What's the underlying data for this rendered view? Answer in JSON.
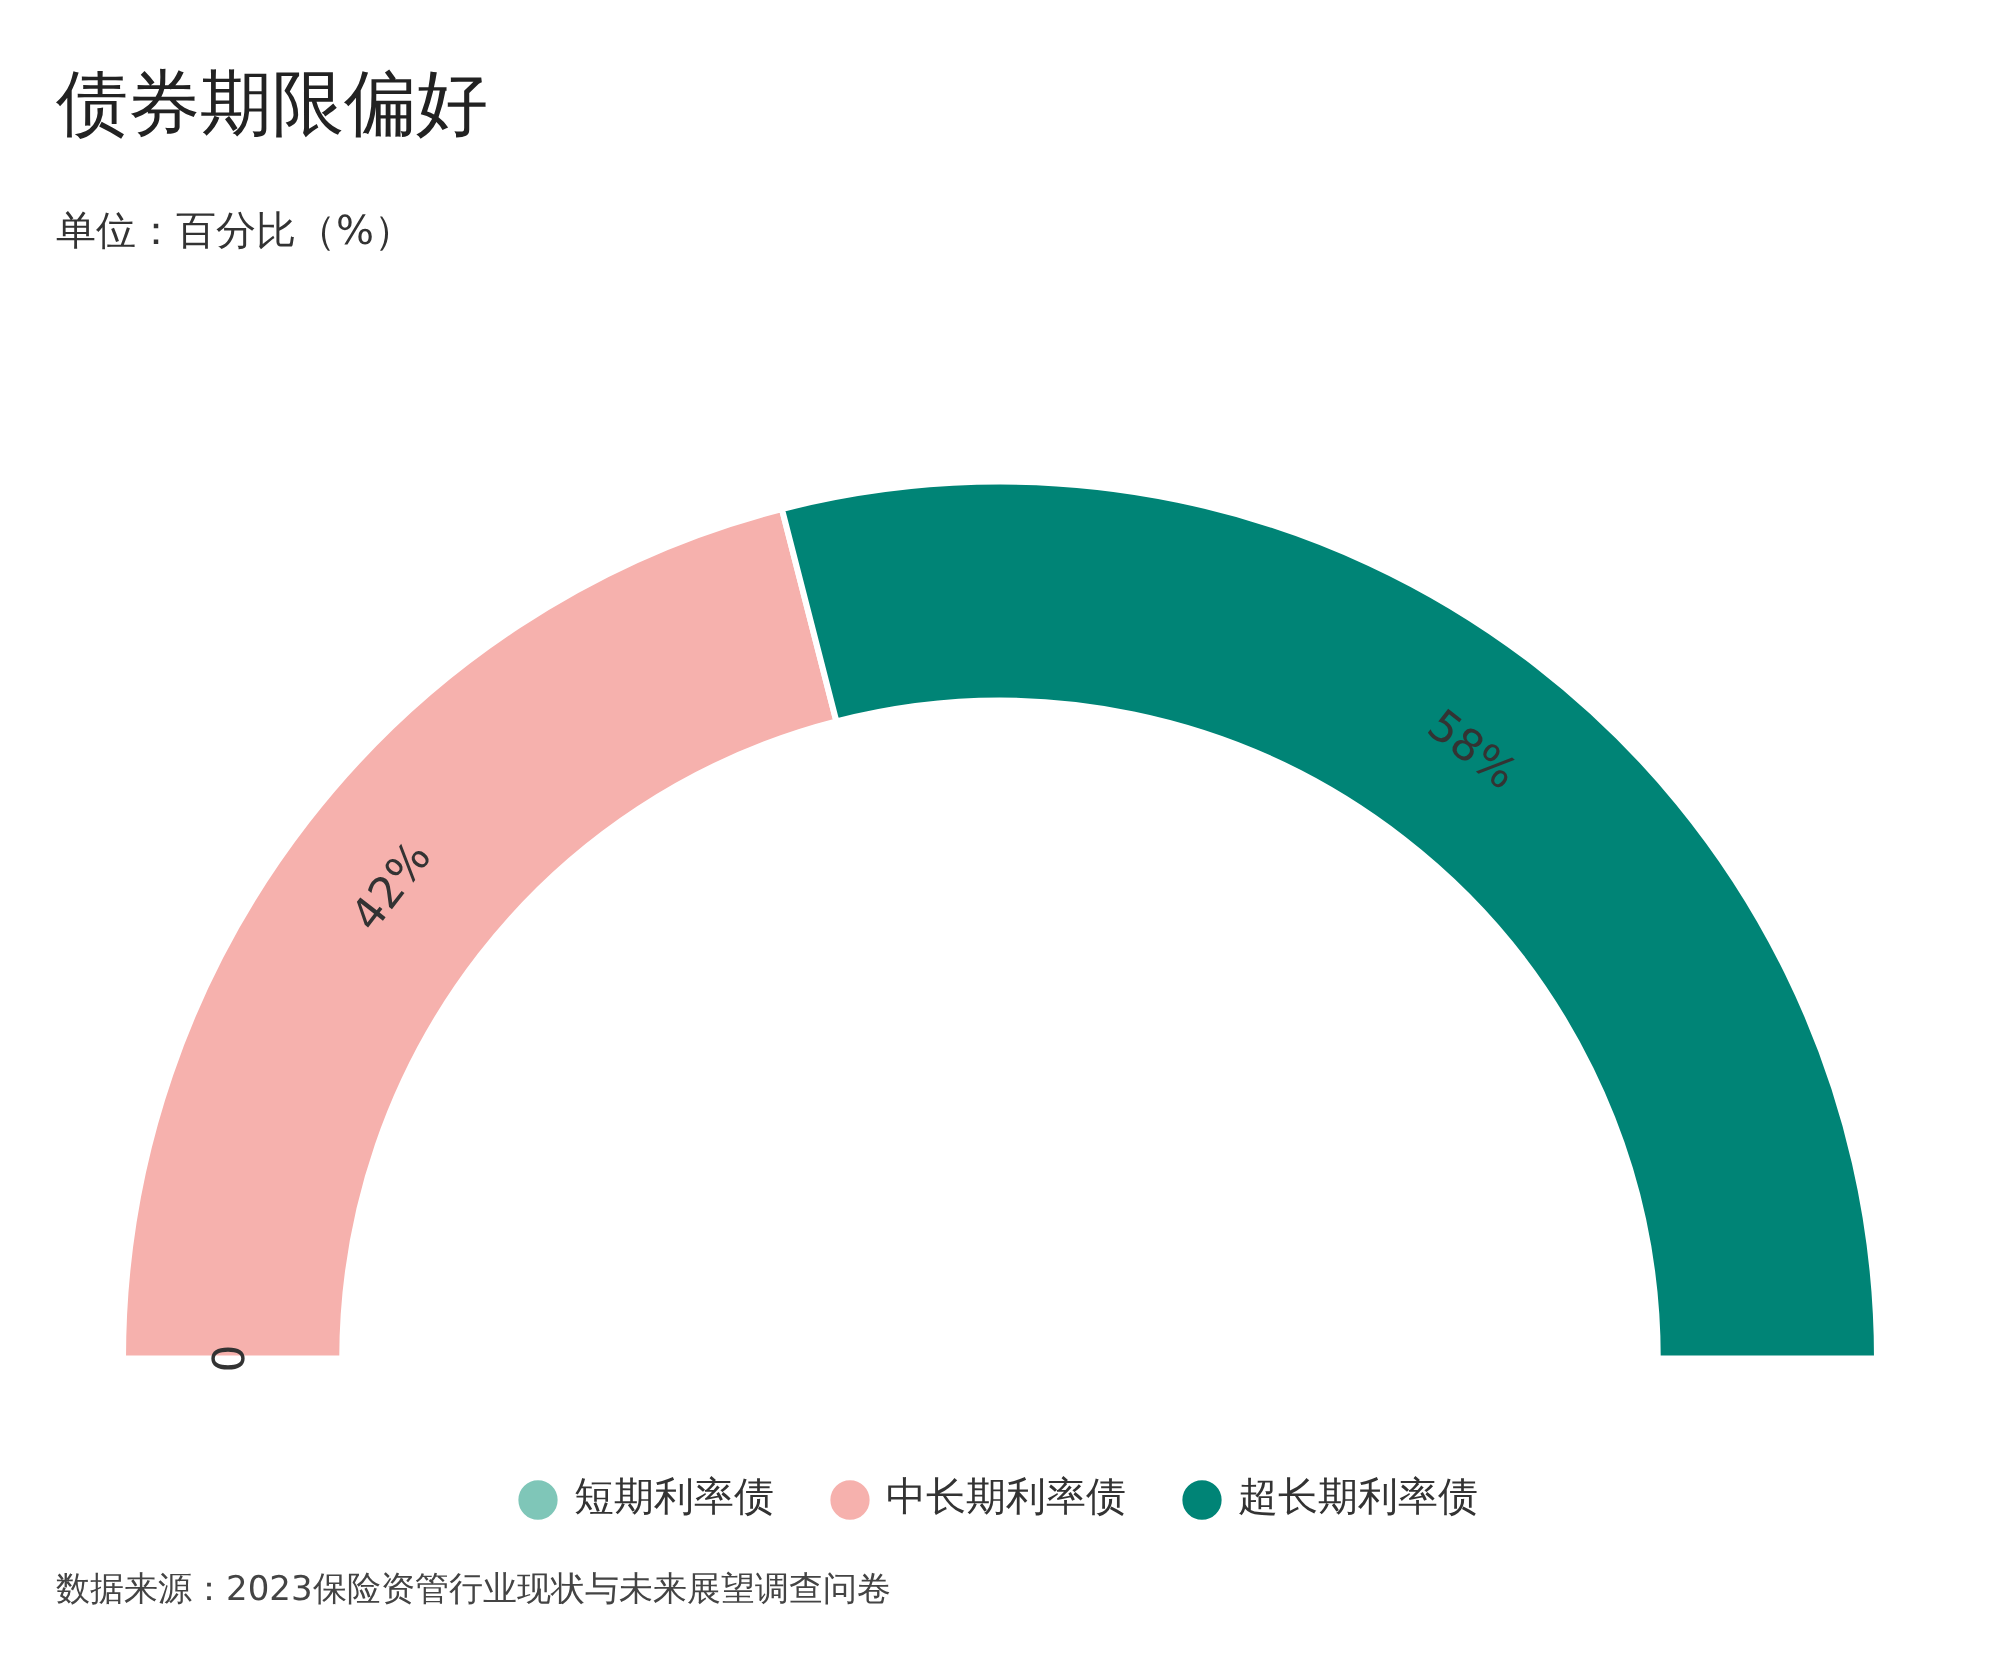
{
  "chart_data": {
    "type": "donut",
    "title": "债券期限偏好",
    "subtitle": "单位：百分比（%）",
    "categories": [
      "短期利率债",
      "中长期利率债",
      "超长期利率债"
    ],
    "values": [
      0,
      42,
      58
    ],
    "colors": [
      "#7fc6b8",
      "#f6b1ad",
      "#008476"
    ],
    "value_labels": [
      "0",
      "42%",
      "58%"
    ],
    "legend": "bottom",
    "annotations": [
      "数据来源：2023保险资管行业现状与未来展望调查问卷"
    ]
  }
}
